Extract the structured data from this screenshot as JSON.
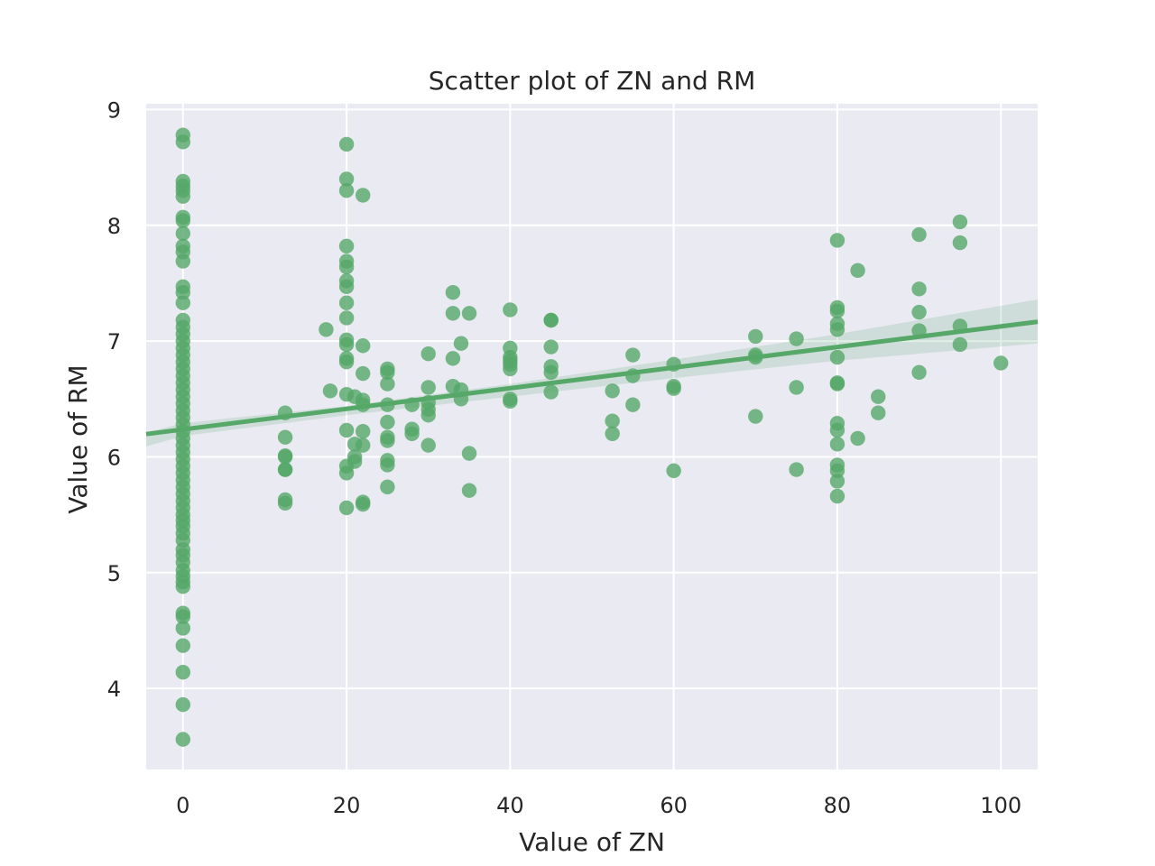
{
  "chart_data": {
    "type": "scatter",
    "title": "Scatter plot of ZN and RM",
    "xlabel": "Value of ZN",
    "ylabel": "Value of RM",
    "xlim": [
      -4.5,
      104.5
    ],
    "ylim": [
      3.3,
      9.05
    ],
    "xticks": [
      "0",
      "20",
      "40",
      "60",
      "80",
      "100"
    ],
    "yticks": [
      "4",
      "5",
      "6",
      "7",
      "8",
      "9"
    ],
    "grid": true,
    "point_color": "#55a868",
    "background_color": "#eaeaf2",
    "regression": {
      "intercept": 6.237,
      "slope": 0.0089,
      "ci_band": [
        {
          "x": -4.5,
          "lo": 6.09,
          "hi": 6.21
        },
        {
          "x": 0,
          "lo": 6.18,
          "hi": 6.29
        },
        {
          "x": 20,
          "lo": 6.36,
          "hi": 6.44
        },
        {
          "x": 40,
          "lo": 6.52,
          "hi": 6.63
        },
        {
          "x": 60,
          "lo": 6.68,
          "hi": 6.84
        },
        {
          "x": 80,
          "lo": 6.83,
          "hi": 7.06
        },
        {
          "x": 104.5,
          "lo": 6.98,
          "hi": 7.36
        }
      ]
    },
    "points": [
      [
        0,
        3.56
      ],
      [
        0,
        3.86
      ],
      [
        0,
        4.14
      ],
      [
        0,
        4.37
      ],
      [
        0,
        4.52
      ],
      [
        0,
        4.62
      ],
      [
        0,
        4.65
      ],
      [
        0,
        4.88
      ],
      [
        0,
        4.92
      ],
      [
        0,
        4.97
      ],
      [
        0,
        5.02
      ],
      [
        0,
        5.09
      ],
      [
        0,
        5.15
      ],
      [
        0,
        5.2
      ],
      [
        0,
        5.28
      ],
      [
        0,
        5.34
      ],
      [
        0,
        5.4
      ],
      [
        0,
        5.45
      ],
      [
        0,
        5.5
      ],
      [
        0,
        5.56
      ],
      [
        0,
        5.62
      ],
      [
        0,
        5.68
      ],
      [
        0,
        5.74
      ],
      [
        0,
        5.8
      ],
      [
        0,
        5.86
      ],
      [
        0,
        5.92
      ],
      [
        0,
        5.98
      ],
      [
        0,
        6.04
      ],
      [
        0,
        6.1
      ],
      [
        0,
        6.16
      ],
      [
        0,
        6.22
      ],
      [
        0,
        6.28
      ],
      [
        0,
        6.34
      ],
      [
        0,
        6.4
      ],
      [
        0,
        6.46
      ],
      [
        0,
        6.52
      ],
      [
        0,
        6.58
      ],
      [
        0,
        6.64
      ],
      [
        0,
        6.7
      ],
      [
        0,
        6.76
      ],
      [
        0,
        6.82
      ],
      [
        0,
        6.88
      ],
      [
        0,
        6.94
      ],
      [
        0,
        7.0
      ],
      [
        0,
        7.06
      ],
      [
        0,
        7.12
      ],
      [
        0,
        7.18
      ],
      [
        0,
        7.33
      ],
      [
        0,
        7.42
      ],
      [
        0,
        7.47
      ],
      [
        0,
        7.69
      ],
      [
        0,
        7.77
      ],
      [
        0,
        7.82
      ],
      [
        0,
        7.93
      ],
      [
        0,
        8.04
      ],
      [
        0,
        8.07
      ],
      [
        0,
        8.25
      ],
      [
        0,
        8.3
      ],
      [
        0,
        8.34
      ],
      [
        0,
        8.38
      ],
      [
        0,
        8.72
      ],
      [
        0,
        8.78
      ],
      [
        12.5,
        5.6
      ],
      [
        12.5,
        5.63
      ],
      [
        12.5,
        5.89
      ],
      [
        12.5,
        5.89
      ],
      [
        12.5,
        6.0
      ],
      [
        12.5,
        6.01
      ],
      [
        12.5,
        6.17
      ],
      [
        12.5,
        6.38
      ],
      [
        17.5,
        7.1
      ],
      [
        18,
        6.57
      ],
      [
        20,
        5.56
      ],
      [
        20,
        5.86
      ],
      [
        20,
        5.92
      ],
      [
        20,
        6.23
      ],
      [
        20,
        6.54
      ],
      [
        20,
        6.82
      ],
      [
        20,
        6.85
      ],
      [
        20,
        6.97
      ],
      [
        20,
        7.01
      ],
      [
        20,
        7.2
      ],
      [
        20,
        7.33
      ],
      [
        20,
        7.47
      ],
      [
        20,
        7.52
      ],
      [
        20,
        7.64
      ],
      [
        20,
        7.69
      ],
      [
        20,
        7.82
      ],
      [
        20,
        8.3
      ],
      [
        20,
        8.4
      ],
      [
        20,
        8.7
      ],
      [
        21,
        5.96
      ],
      [
        21,
        6.0
      ],
      [
        21,
        6.11
      ],
      [
        21,
        6.52
      ],
      [
        22,
        5.59
      ],
      [
        22,
        5.61
      ],
      [
        22,
        6.1
      ],
      [
        22,
        6.22
      ],
      [
        22,
        6.45
      ],
      [
        22,
        6.49
      ],
      [
        22,
        6.72
      ],
      [
        22,
        6.96
      ],
      [
        22,
        8.26
      ],
      [
        25,
        5.74
      ],
      [
        25,
        5.93
      ],
      [
        25,
        5.97
      ],
      [
        25,
        6.14
      ],
      [
        25,
        6.17
      ],
      [
        25,
        6.3
      ],
      [
        25,
        6.45
      ],
      [
        25,
        6.63
      ],
      [
        25,
        6.73
      ],
      [
        25,
        6.76
      ],
      [
        28,
        6.2
      ],
      [
        28,
        6.24
      ],
      [
        28,
        6.45
      ],
      [
        30,
        6.1
      ],
      [
        30,
        6.36
      ],
      [
        30,
        6.41
      ],
      [
        30,
        6.47
      ],
      [
        30,
        6.6
      ],
      [
        30,
        6.89
      ],
      [
        33,
        6.61
      ],
      [
        33,
        6.85
      ],
      [
        33,
        7.24
      ],
      [
        33,
        7.42
      ],
      [
        34,
        6.5
      ],
      [
        34,
        6.58
      ],
      [
        34,
        6.98
      ],
      [
        35,
        5.71
      ],
      [
        35,
        6.03
      ],
      [
        35,
        7.24
      ],
      [
        40,
        6.48
      ],
      [
        40,
        6.5
      ],
      [
        40,
        6.76
      ],
      [
        40,
        6.8
      ],
      [
        40,
        6.83
      ],
      [
        40,
        6.86
      ],
      [
        40,
        6.94
      ],
      [
        40,
        7.27
      ],
      [
        45,
        6.56
      ],
      [
        45,
        6.73
      ],
      [
        45,
        6.78
      ],
      [
        45,
        6.95
      ],
      [
        45,
        7.18
      ],
      [
        45,
        7.18
      ],
      [
        52.5,
        6.2
      ],
      [
        52.5,
        6.31
      ],
      [
        52.5,
        6.57
      ],
      [
        55,
        6.45
      ],
      [
        55,
        6.7
      ],
      [
        55,
        6.88
      ],
      [
        60,
        5.88
      ],
      [
        60,
        6.59
      ],
      [
        60,
        6.61
      ],
      [
        60,
        6.8
      ],
      [
        70,
        6.35
      ],
      [
        70,
        6.86
      ],
      [
        70,
        6.88
      ],
      [
        70,
        7.04
      ],
      [
        75,
        5.89
      ],
      [
        75,
        6.6
      ],
      [
        75,
        7.02
      ],
      [
        80,
        5.66
      ],
      [
        80,
        5.79
      ],
      [
        80,
        5.88
      ],
      [
        80,
        5.93
      ],
      [
        80,
        6.11
      ],
      [
        80,
        6.23
      ],
      [
        80,
        6.29
      ],
      [
        80,
        6.63
      ],
      [
        80,
        6.64
      ],
      [
        80,
        6.86
      ],
      [
        80,
        7.1
      ],
      [
        80,
        7.15
      ],
      [
        80,
        7.26
      ],
      [
        80,
        7.29
      ],
      [
        80,
        7.87
      ],
      [
        82.5,
        6.16
      ],
      [
        82.5,
        7.61
      ],
      [
        85,
        6.38
      ],
      [
        85,
        6.52
      ],
      [
        90,
        6.73
      ],
      [
        90,
        7.09
      ],
      [
        90,
        7.25
      ],
      [
        90,
        7.45
      ],
      [
        90,
        7.92
      ],
      [
        95,
        6.97
      ],
      [
        95,
        7.13
      ],
      [
        95,
        7.85
      ],
      [
        95,
        8.03
      ],
      [
        100,
        6.81
      ]
    ]
  }
}
